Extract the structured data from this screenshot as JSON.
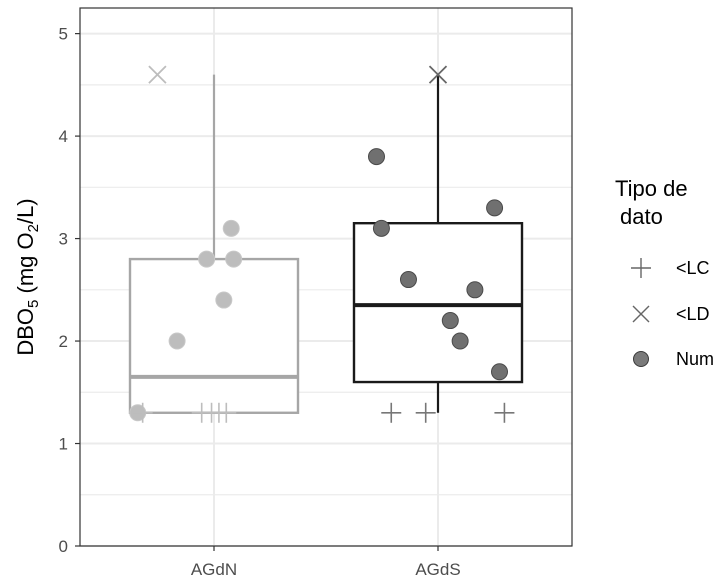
{
  "chart_data": {
    "type": "boxplot",
    "ylabel": {
      "main": "DBO",
      "sub1": "5",
      "mid": " (mg O",
      "sub2": "2",
      "end": "/L)"
    },
    "ylim": [
      0,
      5.25
    ],
    "yticks": [
      0,
      1,
      2,
      3,
      4,
      5
    ],
    "grid": true,
    "categories": [
      "AGdN",
      "AGdS"
    ],
    "groups": [
      {
        "category": "AGdN",
        "color": "#a6a6a6",
        "box": {
          "q1": 1.3,
          "median": 1.65,
          "q3": 2.8,
          "whisker_low": 1.3,
          "whisker_high": 4.6
        },
        "points": [
          {
            "type": "<LD",
            "x_offset": -0.23,
            "y": 4.6
          },
          {
            "type": "Num",
            "x_offset": -0.31,
            "y": 1.3
          },
          {
            "type": "Num",
            "x_offset": -0.15,
            "y": 2.0
          },
          {
            "type": "Num",
            "x_offset": -0.03,
            "y": 2.8
          },
          {
            "type": "Num",
            "x_offset": 0.07,
            "y": 3.1
          },
          {
            "type": "Num",
            "x_offset": 0.08,
            "y": 2.8
          },
          {
            "type": "Num",
            "x_offset": 0.04,
            "y": 2.4
          },
          {
            "type": "<LC",
            "x_offset": -0.29,
            "y": 1.3
          },
          {
            "type": "<LC",
            "x_offset": -0.05,
            "y": 1.3
          },
          {
            "type": "<LC",
            "x_offset": -0.01,
            "y": 1.3
          },
          {
            "type": "<LC",
            "x_offset": 0.02,
            "y": 1.3
          },
          {
            "type": "<LC",
            "x_offset": 0.05,
            "y": 1.3
          }
        ]
      },
      {
        "category": "AGdS",
        "color": "#1a1a1a",
        "box": {
          "q1": 1.6,
          "median": 2.35,
          "q3": 3.15,
          "whisker_low": 1.3,
          "whisker_high": 4.6
        },
        "points": [
          {
            "type": "<LD",
            "x_offset": 0.0,
            "y": 4.6
          },
          {
            "type": "Num",
            "x_offset": -0.25,
            "y": 3.8
          },
          {
            "type": "Num",
            "x_offset": -0.23,
            "y": 3.1
          },
          {
            "type": "Num",
            "x_offset": -0.12,
            "y": 2.6
          },
          {
            "type": "Num",
            "x_offset": 0.05,
            "y": 2.2
          },
          {
            "type": "Num",
            "x_offset": 0.09,
            "y": 2.0
          },
          {
            "type": "Num",
            "x_offset": 0.15,
            "y": 2.5
          },
          {
            "type": "Num",
            "x_offset": 0.23,
            "y": 3.3
          },
          {
            "type": "Num",
            "x_offset": 0.25,
            "y": 1.7
          },
          {
            "type": "<LC",
            "x_offset": -0.19,
            "y": 1.3
          },
          {
            "type": "<LC",
            "x_offset": -0.05,
            "y": 1.3
          },
          {
            "type": "<LC",
            "x_offset": 0.27,
            "y": 1.3
          }
        ]
      }
    ],
    "legend": {
      "title_line1": "Tipo de",
      "title_line2": "dato",
      "position": "right",
      "entries": [
        {
          "label": "<LC",
          "shape": "plus"
        },
        {
          "label": "<LD",
          "shape": "cross"
        },
        {
          "label": "Num",
          "shape": "circle"
        }
      ]
    },
    "colors": {
      "grid": "#ebebeb",
      "panel_border": "#333333",
      "tick": "#333333",
      "point_fill_light": "#bdbdbd",
      "point_fill_dark": "#707070",
      "point_stroke_dark": "#4a4a4a"
    }
  }
}
